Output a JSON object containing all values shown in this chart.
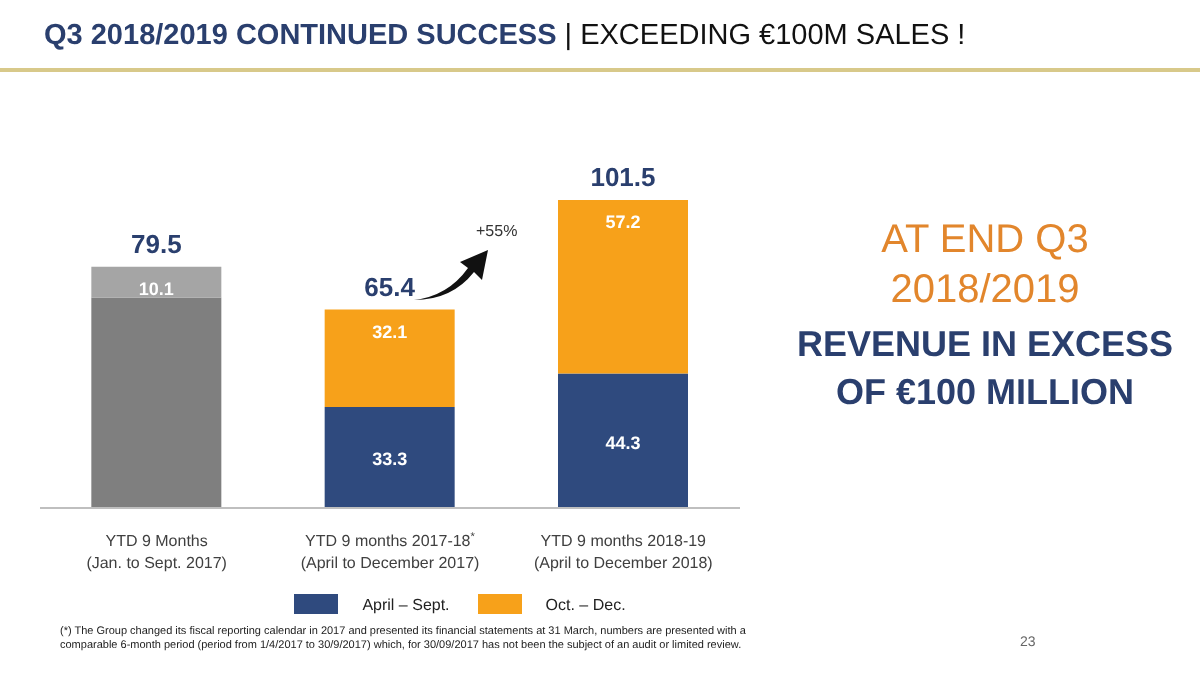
{
  "chart_data": {
    "type": "bar",
    "title": "Q3 2018/2019 CONTINUED SUCCESS",
    "subtitle": "| EXCEEDING €100M SALES !",
    "categories": [
      "YTD 9 Months\n(Jan. to Sept. 2017)",
      "YTD 9 months 2017-18$^{*}$\n(April to December 2017)",
      "YTD 9 months 2018-19\n(April to December 2018)"
    ],
    "stacked": true,
    "series": [
      {
        "name": "April – Sept.",
        "color": "#2f4a7e",
        "colors": [
          "#7f7f7f",
          "#2f4a7e",
          "#2f4a7e"
        ],
        "values": [
          69.4,
          33.3,
          44.3
        ],
        "value_labels": [
          null,
          "33.3",
          "44.3"
        ]
      },
      {
        "name": "Oct. – Dec.",
        "color": "#f7a11a",
        "colors": [
          "#a5a5a5",
          "#f7a11a",
          "#f7a11a"
        ],
        "values": [
          10.1,
          32.1,
          57.2
        ],
        "value_labels": [
          "10.1",
          "32.1",
          "57.2"
        ]
      }
    ],
    "totals": [
      "79.5",
      "65.4",
      "101.5"
    ],
    "legend": "bottom",
    "annotations": [
      "+55%",
      "AT END Q3 2018/2019",
      "REVENUE IN EXCESS OF €100 MILLION",
      "(*) The Group changed its fiscal reporting calendar in 2017 and presented its financial statements at 31 March, numbers are presented with a comparable 6-month period (period from 1/4/2017 to 30/9/2017) which, for 30/09/2017 has not been the subject of an audit or limited review.",
      "23"
    ]
  }
}
